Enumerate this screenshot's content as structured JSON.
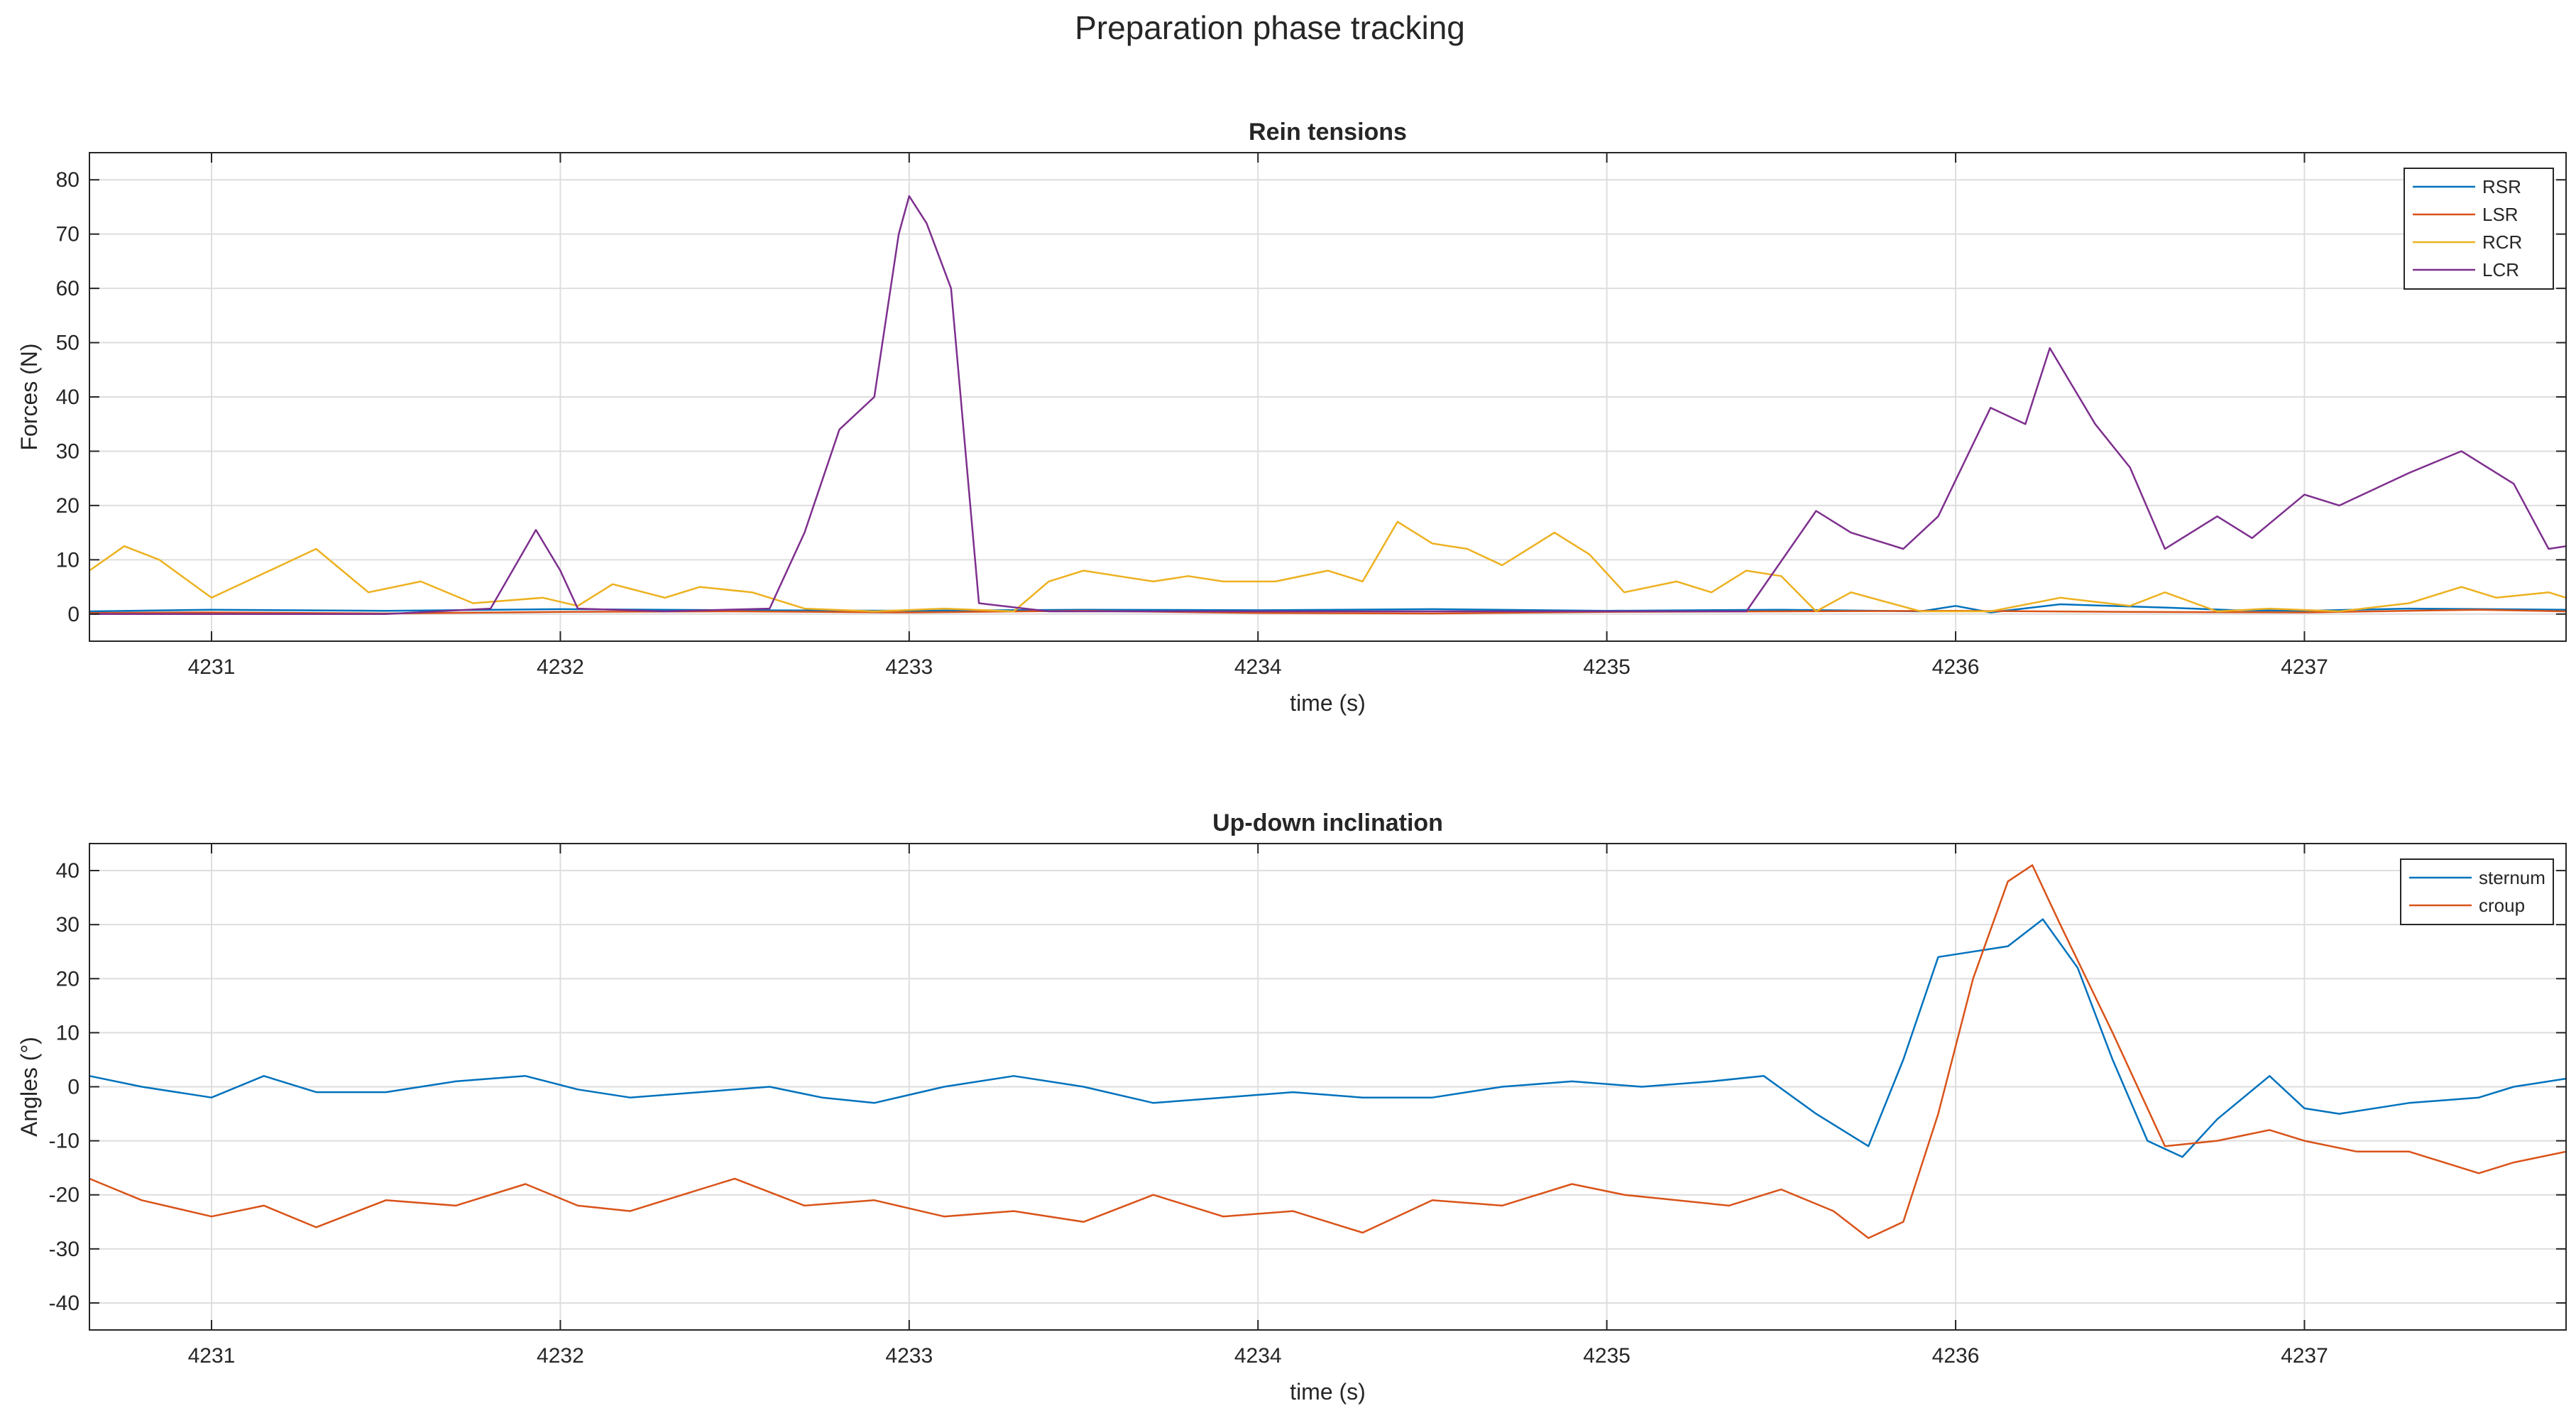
{
  "figure": {
    "title": "Preparation phase tracking"
  },
  "chart_data": [
    {
      "type": "line",
      "title": "Rein tensions",
      "xlabel": "time (s)",
      "ylabel": "Forces (N)",
      "xlim": [
        4230.65,
        4237.75
      ],
      "ylim": [
        -5,
        85
      ],
      "xticks": [
        4231,
        4232,
        4233,
        4234,
        4235,
        4236,
        4237
      ],
      "yticks": [
        0,
        10,
        20,
        30,
        40,
        50,
        60,
        70,
        80
      ],
      "grid": true,
      "legend_position": "top-right",
      "series": [
        {
          "name": "RSR",
          "color": "#0072BD",
          "x": [
            4230.65,
            4231.0,
            4231.5,
            4232.0,
            4232.5,
            4233.0,
            4233.5,
            4234.0,
            4234.5,
            4235.0,
            4235.5,
            4235.9,
            4236.0,
            4236.1,
            4236.3,
            4236.6,
            4236.8,
            4237.0,
            4237.3,
            4237.75
          ],
          "y": [
            0.5,
            0.8,
            0.6,
            0.9,
            0.7,
            0.6,
            0.8,
            0.7,
            0.9,
            0.6,
            0.8,
            0.5,
            1.5,
            0.3,
            1.8,
            1.2,
            0.7,
            0.6,
            1.0,
            0.8
          ]
        },
        {
          "name": "LSR",
          "color": "#D95319",
          "x": [
            4230.65,
            4231.0,
            4231.5,
            4232.0,
            4232.5,
            4233.0,
            4233.5,
            4234.0,
            4234.5,
            4235.0,
            4235.5,
            4236.0,
            4236.5,
            4237.0,
            4237.5,
            4237.75
          ],
          "y": [
            0.2,
            0.3,
            0.1,
            0.4,
            0.5,
            0.3,
            0.6,
            0.2,
            0.1,
            0.4,
            0.5,
            0.6,
            0.4,
            0.3,
            0.8,
            0.5
          ]
        },
        {
          "name": "RCR",
          "color": "#EDB120",
          "x": [
            4230.65,
            4230.75,
            4230.85,
            4231.0,
            4231.1,
            4231.3,
            4231.45,
            4231.6,
            4231.75,
            4231.95,
            4232.05,
            4232.15,
            4232.3,
            4232.4,
            4232.55,
            4232.7,
            4232.9,
            4233.1,
            4233.3,
            4233.4,
            4233.5,
            4233.6,
            4233.7,
            4233.8,
            4233.9,
            4234.05,
            4234.2,
            4234.3,
            4234.4,
            4234.5,
            4234.6,
            4234.7,
            4234.85,
            4234.95,
            4235.05,
            4235.2,
            4235.3,
            4235.4,
            4235.5,
            4235.6,
            4235.7,
            4235.9,
            4236.1,
            4236.3,
            4236.5,
            4236.6,
            4236.75,
            4236.9,
            4237.1,
            4237.3,
            4237.45,
            4237.55,
            4237.7,
            4237.75
          ],
          "y": [
            8,
            12.5,
            10,
            3,
            6,
            12,
            4,
            6,
            2,
            3,
            1.5,
            5.5,
            3,
            5,
            4,
            1,
            0.5,
            1,
            0.5,
            6,
            8,
            7,
            6,
            7,
            6,
            6,
            8,
            6,
            17,
            13,
            12,
            9,
            15,
            11,
            4,
            6,
            4,
            8,
            7,
            0.5,
            4,
            0.5,
            0.5,
            3,
            1.5,
            4,
            0.5,
            1,
            0.5,
            2,
            5,
            3,
            4,
            3
          ]
        },
        {
          "name": "LCR",
          "color": "#7E2F8E",
          "x": [
            4230.65,
            4231.5,
            4231.8,
            4231.93,
            4232.0,
            4232.05,
            4232.3,
            4232.6,
            4232.7,
            4232.8,
            4232.9,
            4232.97,
            4233.0,
            4233.05,
            4233.12,
            4233.2,
            4233.4,
            4234.0,
            4235.0,
            4235.4,
            4235.6,
            4235.7,
            4235.85,
            4235.95,
            4236.1,
            4236.2,
            4236.27,
            4236.4,
            4236.5,
            4236.6,
            4236.75,
            4236.85,
            4237.0,
            4237.1,
            4237.3,
            4237.45,
            4237.6,
            4237.7,
            4237.75
          ],
          "y": [
            0,
            0,
            1,
            15.5,
            8,
            1,
            0.5,
            1,
            15,
            34,
            40,
            70,
            77,
            72,
            60,
            2,
            0.5,
            0.5,
            0.5,
            0.5,
            19,
            15,
            12,
            18,
            38,
            35,
            49,
            35,
            27,
            12,
            18,
            14,
            22,
            20,
            26,
            30,
            24,
            12,
            12.5
          ]
        }
      ]
    },
    {
      "type": "line",
      "title": "Up-down inclination",
      "xlabel": "time (s)",
      "ylabel": "Angles (°)",
      "xlim": [
        4230.65,
        4237.75
      ],
      "ylim": [
        -45,
        45
      ],
      "xticks": [
        4231,
        4232,
        4233,
        4234,
        4235,
        4236,
        4237
      ],
      "yticks": [
        -40,
        -30,
        -20,
        -10,
        0,
        10,
        20,
        30,
        40
      ],
      "grid": true,
      "legend_position": "top-right",
      "series": [
        {
          "name": "sternum",
          "color": "#0072BD",
          "x": [
            4230.65,
            4230.8,
            4231.0,
            4231.15,
            4231.3,
            4231.5,
            4231.7,
            4231.9,
            4232.05,
            4232.2,
            4232.4,
            4232.6,
            4232.75,
            4232.9,
            4233.1,
            4233.3,
            4233.5,
            4233.7,
            4233.9,
            4234.1,
            4234.3,
            4234.5,
            4234.7,
            4234.9,
            4235.1,
            4235.3,
            4235.45,
            4235.6,
            4235.75,
            4235.85,
            4235.95,
            4236.05,
            4236.15,
            4236.25,
            4236.35,
            4236.45,
            4236.55,
            4236.65,
            4236.75,
            4236.9,
            4237.0,
            4237.1,
            4237.3,
            4237.5,
            4237.6,
            4237.75
          ],
          "y": [
            2,
            0,
            -2,
            2,
            -1,
            -1,
            1,
            2,
            -0.5,
            -2,
            -1,
            0,
            -2,
            -3,
            0,
            2,
            0,
            -3,
            -2,
            -1,
            -2,
            -2,
            0,
            1,
            0,
            1,
            2,
            -5,
            -11,
            5,
            24,
            25,
            26,
            31,
            22,
            5,
            -10,
            -13,
            -6,
            2,
            -4,
            -5,
            -3,
            -2,
            0,
            1.5
          ]
        },
        {
          "name": "croup",
          "color": "#D95319",
          "x": [
            4230.65,
            4230.8,
            4231.0,
            4231.15,
            4231.3,
            4231.5,
            4231.7,
            4231.9,
            4232.05,
            4232.2,
            4232.35,
            4232.5,
            4232.7,
            4232.9,
            4233.1,
            4233.3,
            4233.5,
            4233.7,
            4233.9,
            4234.1,
            4234.3,
            4234.5,
            4234.7,
            4234.9,
            4235.05,
            4235.2,
            4235.35,
            4235.5,
            4235.65,
            4235.75,
            4235.85,
            4235.95,
            4236.05,
            4236.15,
            4236.22,
            4236.3,
            4236.45,
            4236.6,
            4236.75,
            4236.9,
            4237.0,
            4237.15,
            4237.3,
            4237.5,
            4237.6,
            4237.75
          ],
          "y": [
            -17,
            -21,
            -24,
            -22,
            -26,
            -21,
            -22,
            -18,
            -22,
            -23,
            -20,
            -17,
            -22,
            -21,
            -24,
            -23,
            -25,
            -20,
            -24,
            -23,
            -27,
            -21,
            -22,
            -18,
            -20,
            -21,
            -22,
            -19,
            -23,
            -28,
            -25,
            -5,
            20,
            38,
            41,
            30,
            10,
            -11,
            -10,
            -8,
            -10,
            -12,
            -12,
            -16,
            -14,
            -12
          ]
        }
      ]
    }
  ]
}
